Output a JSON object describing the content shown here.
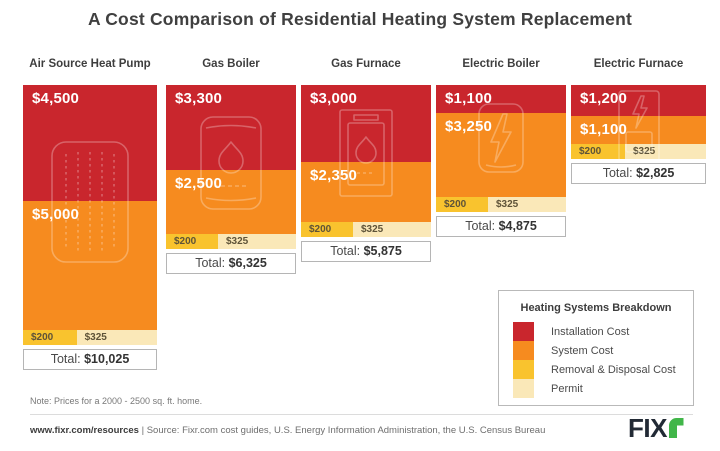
{
  "title": "A Cost Comparison of Residential Heating System Replacement",
  "note": "Note: Prices for a 2000 - 2500 sq. ft. home.",
  "strings": {
    "total_label": "Total:"
  },
  "legend": {
    "title": "Heating Systems Breakdown",
    "items": [
      {
        "label": "Installation Cost",
        "color": "#c9262d"
      },
      {
        "label": "System Cost",
        "color": "#f68b1f"
      },
      {
        "label": "Removal & Disposal Cost",
        "color": "#f9c32e"
      },
      {
        "label": "Permit",
        "color": "#fae8b8"
      }
    ]
  },
  "footer": {
    "link": "www.fixr.com/resources",
    "separator": "|",
    "source": "Source: Fixr.com cost guides, U.S. Energy Information Administration, the U.S. Census Bureau",
    "logo": {
      "text": "FIX",
      "text_color": "#222a35",
      "r_color": "#41b649"
    }
  },
  "chart_data": {
    "type": "bar",
    "stacked": true,
    "orientation": "vertical",
    "unit": "USD",
    "value_prefix": "$",
    "grid": false,
    "legend_position": "bottom-right",
    "categories": [
      "Air Source Heat Pump",
      "Gas Boiler",
      "Gas Furnace",
      "Electric Boiler",
      "Electric Furnace"
    ],
    "series": [
      {
        "name": "Installation Cost",
        "color": "#c9262d",
        "values": [
          4500,
          3300,
          3000,
          1100,
          1200
        ]
      },
      {
        "name": "System Cost",
        "color": "#f68b1f",
        "values": [
          5000,
          2500,
          2350,
          3250,
          1100
        ]
      },
      {
        "name": "Removal & Disposal Cost",
        "color": "#f9c32e",
        "values": [
          200,
          200,
          200,
          200,
          200
        ]
      },
      {
        "name": "Permit",
        "color": "#fae8b8",
        "values": [
          325,
          325,
          325,
          325,
          325
        ]
      }
    ],
    "totals": [
      10025,
      6325,
      5875,
      4875,
      2825
    ],
    "icons": [
      "heat-pump-icon",
      "gas-boiler-icon",
      "gas-furnace-icon",
      "electric-boiler-icon",
      "electric-furnace-icon"
    ]
  }
}
